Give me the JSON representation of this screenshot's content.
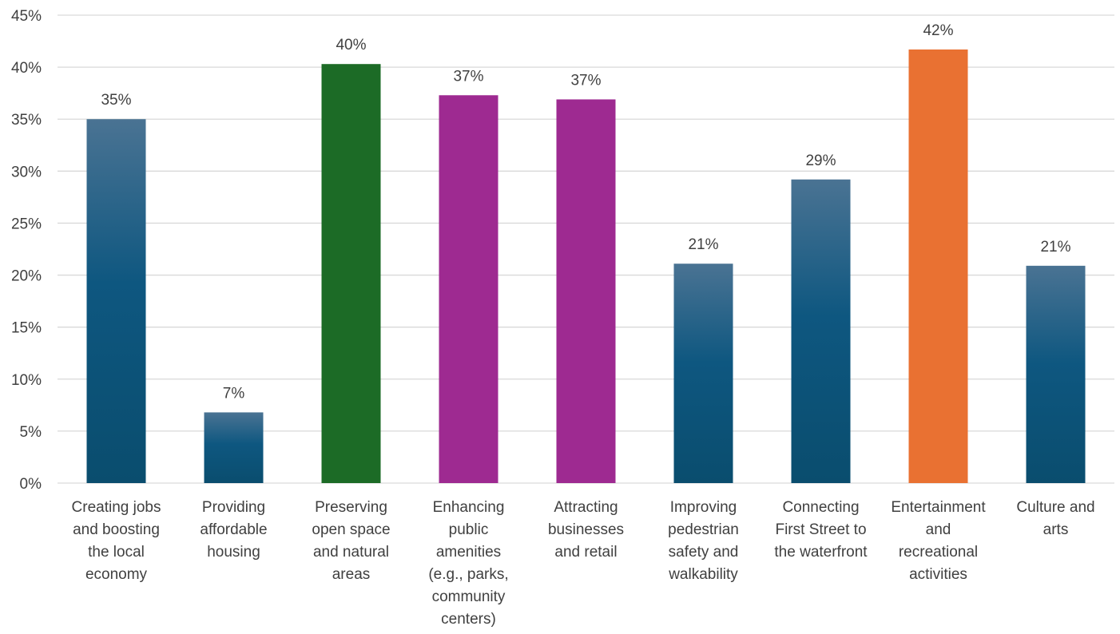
{
  "chart_data": {
    "type": "bar",
    "categories": [
      [
        "Creating jobs",
        "and boosting",
        "the local",
        "economy"
      ],
      [
        "Providing",
        "affordable",
        "housing"
      ],
      [
        "Preserving",
        "open space",
        "and natural",
        "areas"
      ],
      [
        "Enhancing",
        "public",
        "amenities",
        "(e.g., parks,",
        "community",
        "centers)"
      ],
      [
        "Attracting",
        "businesses",
        "and retail"
      ],
      [
        "Improving",
        "pedestrian",
        "safety and",
        "walkability"
      ],
      [
        "Connecting",
        "First Street to",
        "the waterfront"
      ],
      [
        "Entertainment",
        "and",
        "recreational",
        "activities"
      ],
      [
        "Culture and",
        "arts"
      ]
    ],
    "values": [
      35.0,
      6.8,
      40.3,
      37.3,
      36.9,
      21.1,
      29.2,
      41.7,
      20.9
    ],
    "data_labels": [
      "35%",
      "7%",
      "40%",
      "37%",
      "37%",
      "21%",
      "29%",
      "42%",
      "21%"
    ],
    "bar_styles": [
      "blue",
      "blue",
      "green",
      "purple",
      "purple",
      "blue",
      "blue",
      "orange",
      "blue"
    ],
    "ylim": [
      0,
      45
    ],
    "yticks": [
      0,
      5,
      10,
      15,
      20,
      25,
      30,
      35,
      40,
      45
    ],
    "ytick_labels": [
      "0%",
      "5%",
      "10%",
      "15%",
      "20%",
      "25%",
      "30%",
      "35%",
      "40%",
      "45%"
    ],
    "grid": true,
    "colors": {
      "blue_top": "#4a7393",
      "blue_mid": "#0e5780",
      "blue_bottom": "#0a4d6e",
      "green": "#1c6b26",
      "purple": "#9e2a91",
      "orange": "#e97132"
    }
  }
}
